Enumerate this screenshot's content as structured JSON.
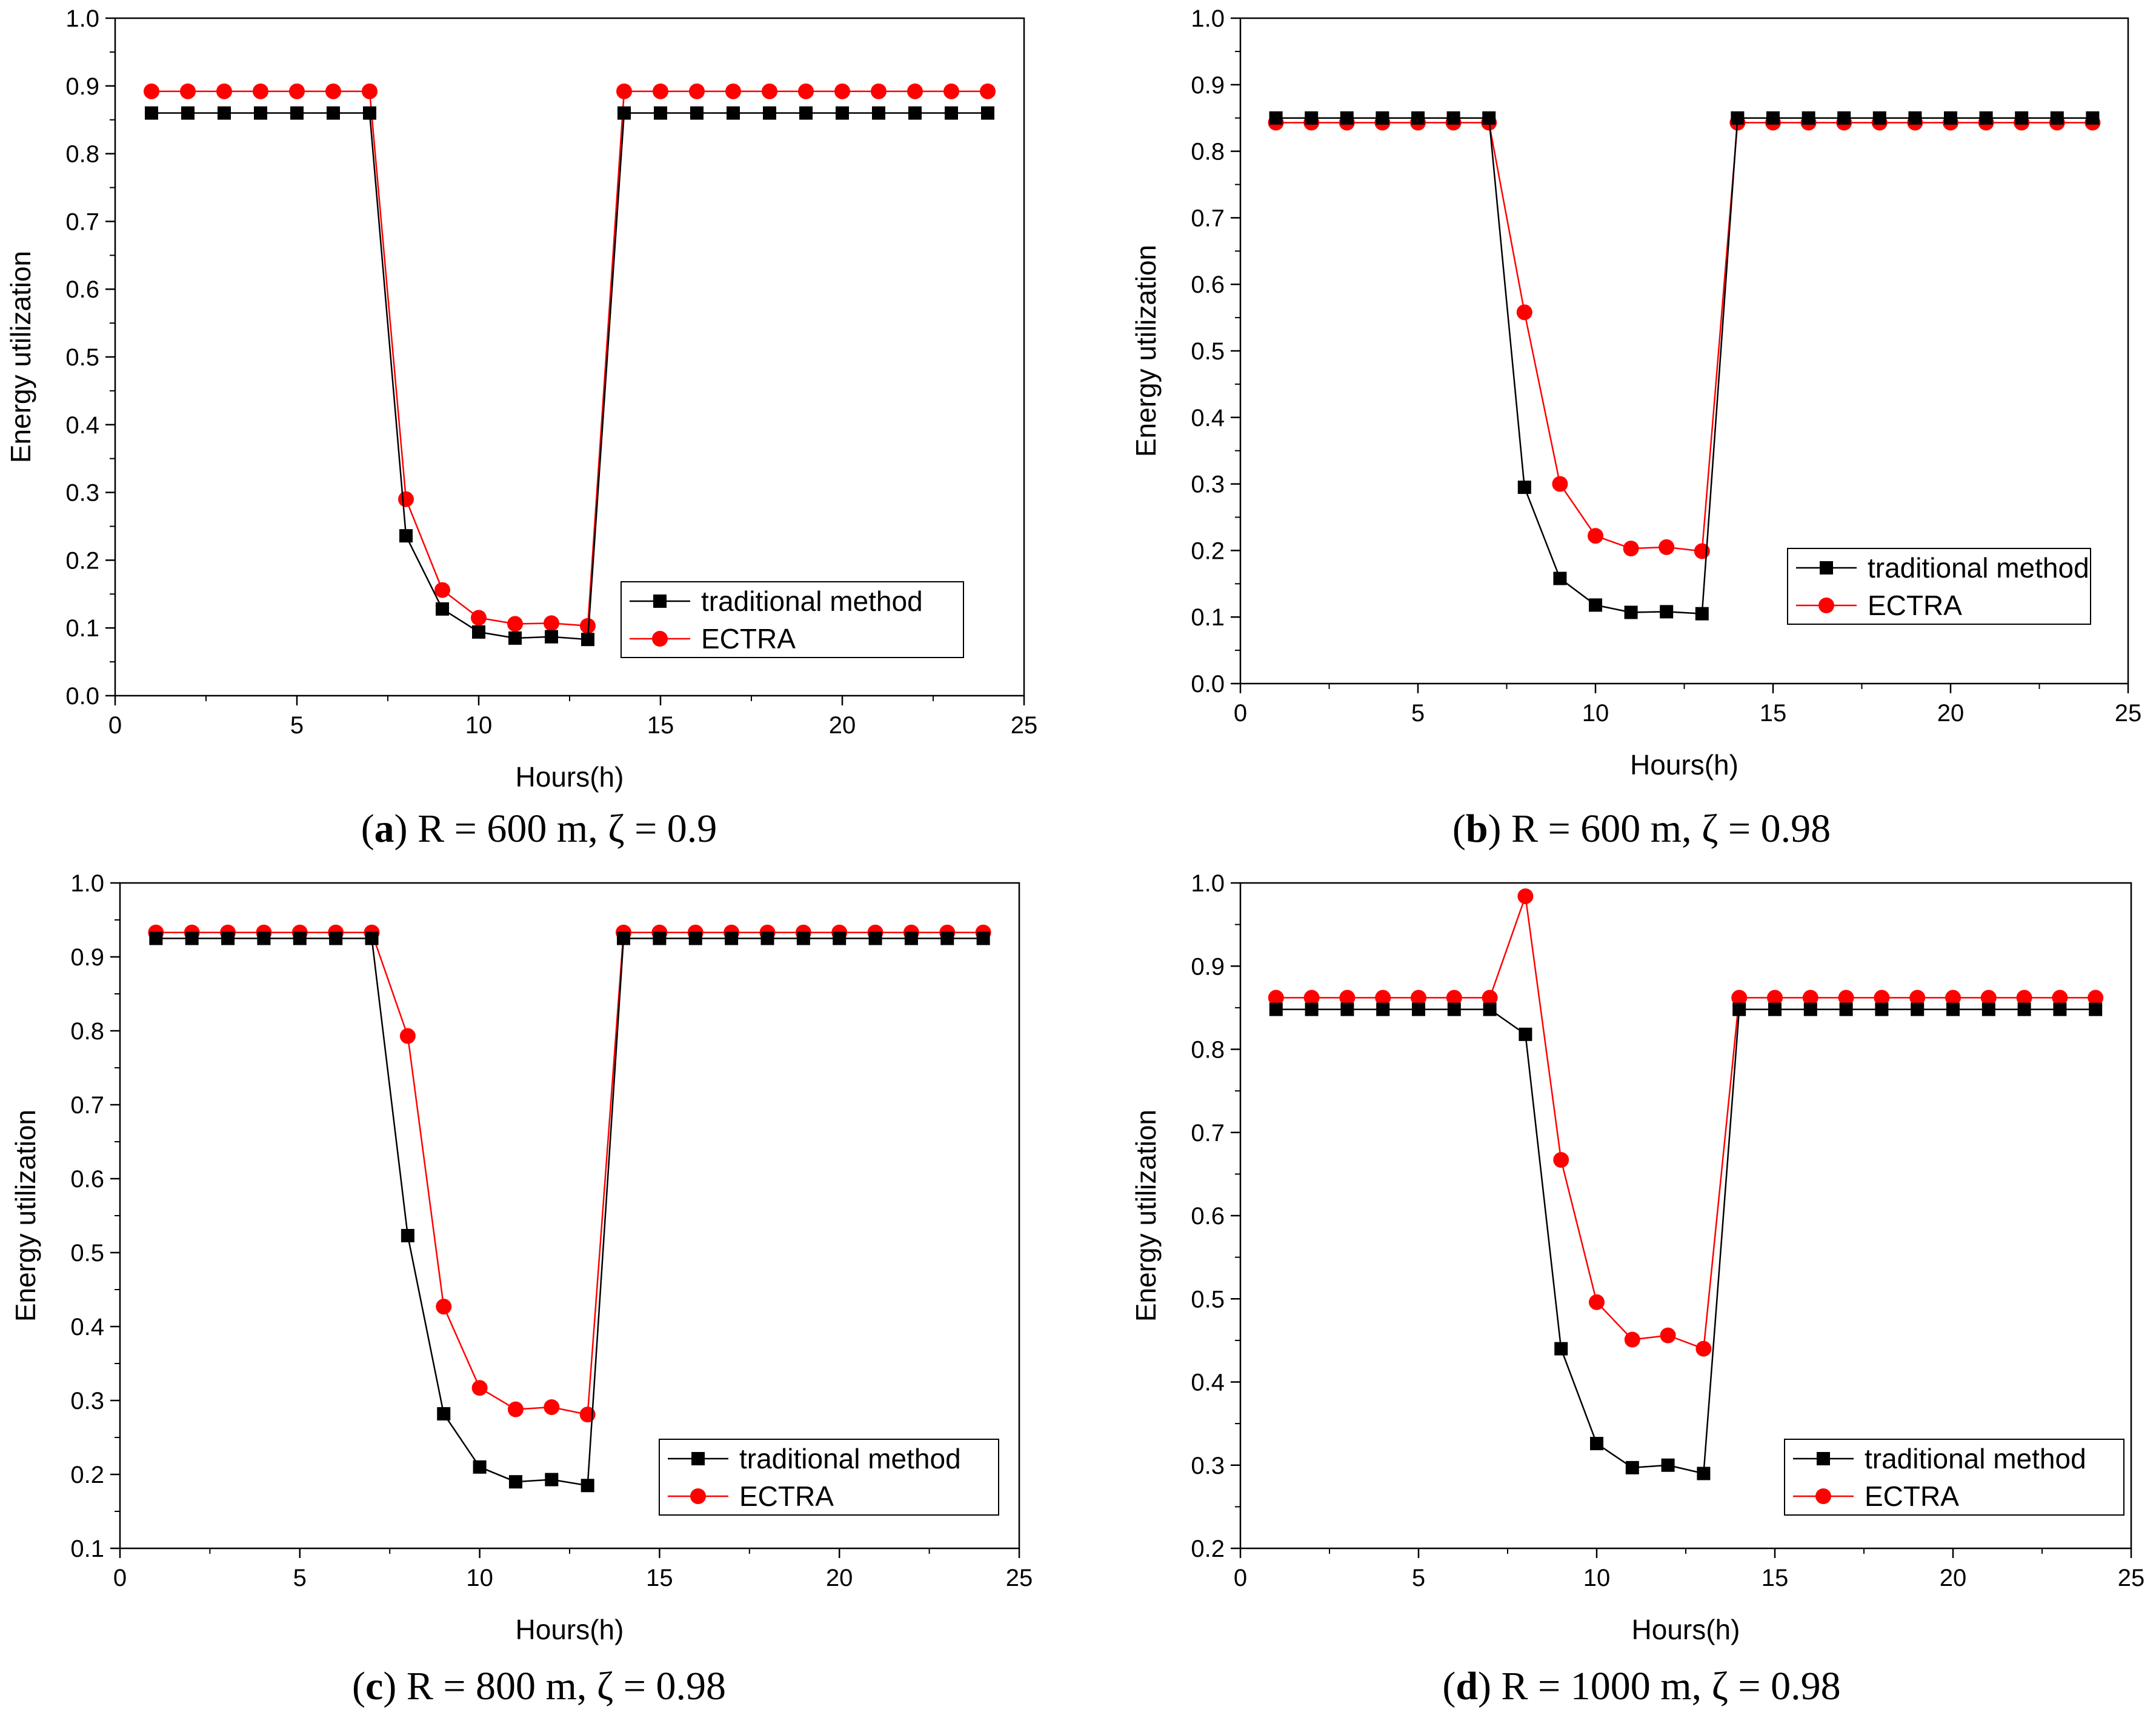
{
  "series_names": [
    "traditional method",
    "ECTRA"
  ],
  "colors": {
    "traditional": "#000000",
    "ectra": "#ff0000"
  },
  "chart_data": [
    {
      "type": "line",
      "caption": {
        "letter": "a",
        "text": " R = 600 m, ζ = 0.9"
      },
      "xlabel": "Hours(h)",
      "ylabel": "Energy utilization",
      "xlim": [
        0,
        25
      ],
      "ylim": [
        0.0,
        1.0
      ],
      "xticks": [
        0,
        5,
        10,
        15,
        20,
        25
      ],
      "yticks": [
        0.0,
        0.1,
        0.2,
        0.3,
        0.4,
        0.5,
        0.6,
        0.7,
        0.8,
        0.9,
        1.0
      ],
      "ytick_labels": [
        "0.0",
        "0.1",
        "0.2",
        "0.3",
        "0.4",
        "0.5",
        "0.6",
        "0.7",
        "0.8",
        "0.9",
        "1.0"
      ],
      "legend": "bottom-right",
      "x": [
        1,
        2,
        3,
        4,
        5,
        6,
        7,
        8,
        9,
        10,
        11,
        12,
        13,
        14,
        15,
        16,
        17,
        18,
        19,
        20,
        21,
        22,
        23,
        24
      ],
      "series": [
        {
          "name": "traditional method",
          "marker": "square",
          "color": "#000000",
          "values": [
            0.86,
            0.86,
            0.86,
            0.86,
            0.86,
            0.86,
            0.86,
            0.236,
            0.128,
            0.094,
            0.085,
            0.087,
            0.083,
            0.86,
            0.86,
            0.86,
            0.86,
            0.86,
            0.86,
            0.86,
            0.86,
            0.86,
            0.86,
            0.86
          ]
        },
        {
          "name": "ECTRA",
          "marker": "circle",
          "color": "#ff0000",
          "values": [
            0.892,
            0.892,
            0.892,
            0.892,
            0.892,
            0.892,
            0.892,
            0.29,
            0.156,
            0.115,
            0.106,
            0.107,
            0.103,
            0.892,
            0.892,
            0.892,
            0.892,
            0.892,
            0.892,
            0.892,
            0.892,
            0.892,
            0.892,
            0.892
          ]
        }
      ]
    },
    {
      "type": "line",
      "caption": {
        "letter": "b",
        "text": " R = 600 m, ζ = 0.98"
      },
      "xlabel": "Hours(h)",
      "ylabel": "Energy utilization",
      "xlim": [
        0,
        25
      ],
      "ylim": [
        0.0,
        1.0
      ],
      "xticks": [
        0,
        5,
        10,
        15,
        20,
        25
      ],
      "yticks": [
        0.0,
        0.1,
        0.2,
        0.3,
        0.4,
        0.5,
        0.6,
        0.7,
        0.8,
        0.9,
        1.0
      ],
      "ytick_labels": [
        "0.0",
        "0.1",
        "0.2",
        "0.3",
        "0.4",
        "0.5",
        "0.6",
        "0.7",
        "0.8",
        "0.9",
        "1.0"
      ],
      "legend": "bottom-right",
      "x": [
        1,
        2,
        3,
        4,
        5,
        6,
        7,
        8,
        9,
        10,
        11,
        12,
        13,
        14,
        15,
        16,
        17,
        18,
        19,
        20,
        21,
        22,
        23,
        24
      ],
      "series": [
        {
          "name": "traditional method",
          "marker": "square",
          "color": "#000000",
          "values": [
            0.85,
            0.85,
            0.85,
            0.85,
            0.85,
            0.85,
            0.85,
            0.295,
            0.158,
            0.118,
            0.107,
            0.108,
            0.105,
            0.85,
            0.85,
            0.85,
            0.85,
            0.85,
            0.85,
            0.85,
            0.85,
            0.85,
            0.85,
            0.85
          ]
        },
        {
          "name": "ECTRA",
          "marker": "circle",
          "color": "#ff0000",
          "values": [
            0.843,
            0.843,
            0.843,
            0.843,
            0.843,
            0.843,
            0.843,
            0.558,
            0.3,
            0.222,
            0.203,
            0.205,
            0.199,
            0.843,
            0.843,
            0.843,
            0.843,
            0.843,
            0.843,
            0.843,
            0.843,
            0.843,
            0.843,
            0.843
          ]
        }
      ]
    },
    {
      "type": "line",
      "caption": {
        "letter": "c",
        "text": " R = 800 m, ζ = 0.98"
      },
      "xlabel": "Hours(h)",
      "ylabel": "Energy utilization",
      "xlim": [
        0,
        25
      ],
      "ylim": [
        0.1,
        1.0
      ],
      "xticks": [
        0,
        5,
        10,
        15,
        20,
        25
      ],
      "yticks": [
        0.1,
        0.2,
        0.3,
        0.4,
        0.5,
        0.6,
        0.7,
        0.8,
        0.9,
        1.0
      ],
      "ytick_labels": [
        "0.1",
        "0.2",
        "0.3",
        "0.4",
        "0.5",
        "0.6",
        "0.7",
        "0.8",
        "0.9",
        "1.0"
      ],
      "legend": "bottom-right",
      "x": [
        1,
        2,
        3,
        4,
        5,
        6,
        7,
        8,
        9,
        10,
        11,
        12,
        13,
        14,
        15,
        16,
        17,
        18,
        19,
        20,
        21,
        22,
        23,
        24
      ],
      "series": [
        {
          "name": "traditional method",
          "marker": "square",
          "color": "#000000",
          "values": [
            0.925,
            0.925,
            0.925,
            0.925,
            0.925,
            0.925,
            0.925,
            0.523,
            0.282,
            0.21,
            0.19,
            0.193,
            0.185,
            0.925,
            0.925,
            0.925,
            0.925,
            0.925,
            0.925,
            0.925,
            0.925,
            0.925,
            0.925,
            0.925
          ]
        },
        {
          "name": "ECTRA",
          "marker": "circle",
          "color": "#ff0000",
          "values": [
            0.933,
            0.933,
            0.933,
            0.933,
            0.933,
            0.933,
            0.933,
            0.793,
            0.427,
            0.317,
            0.288,
            0.291,
            0.281,
            0.933,
            0.933,
            0.933,
            0.933,
            0.933,
            0.933,
            0.933,
            0.933,
            0.933,
            0.933,
            0.933
          ]
        }
      ]
    },
    {
      "type": "line",
      "caption": {
        "letter": "d",
        "text": " R = 1000 m,  ζ = 0.98"
      },
      "xlabel": "Hours(h)",
      "ylabel": "Energy utilization",
      "xlim": [
        0,
        25
      ],
      "ylim": [
        0.2,
        1.0
      ],
      "xticks": [
        0,
        5,
        10,
        15,
        20,
        25
      ],
      "yticks": [
        0.2,
        0.3,
        0.4,
        0.5,
        0.6,
        0.7,
        0.8,
        0.9,
        1.0
      ],
      "ytick_labels": [
        "0.2",
        "0.3",
        "0.4",
        "0.5",
        "0.6",
        "0.7",
        "0.8",
        "0.9",
        "1.0"
      ],
      "legend": "bottom-right",
      "x": [
        1,
        2,
        3,
        4,
        5,
        6,
        7,
        8,
        9,
        10,
        11,
        12,
        13,
        14,
        15,
        16,
        17,
        18,
        19,
        20,
        21,
        22,
        23,
        24
      ],
      "series": [
        {
          "name": "traditional method",
          "marker": "square",
          "color": "#000000",
          "values": [
            0.848,
            0.848,
            0.848,
            0.848,
            0.848,
            0.848,
            0.848,
            0.818,
            0.44,
            0.326,
            0.297,
            0.3,
            0.29,
            0.848,
            0.848,
            0.848,
            0.848,
            0.848,
            0.848,
            0.848,
            0.848,
            0.848,
            0.848,
            0.848
          ]
        },
        {
          "name": "ECTRA",
          "marker": "circle",
          "color": "#ff0000",
          "values": [
            0.862,
            0.862,
            0.862,
            0.862,
            0.862,
            0.862,
            0.862,
            0.984,
            0.667,
            0.496,
            0.451,
            0.456,
            0.44,
            0.862,
            0.862,
            0.862,
            0.862,
            0.862,
            0.862,
            0.862,
            0.862,
            0.862,
            0.862,
            0.862
          ]
        }
      ]
    }
  ]
}
